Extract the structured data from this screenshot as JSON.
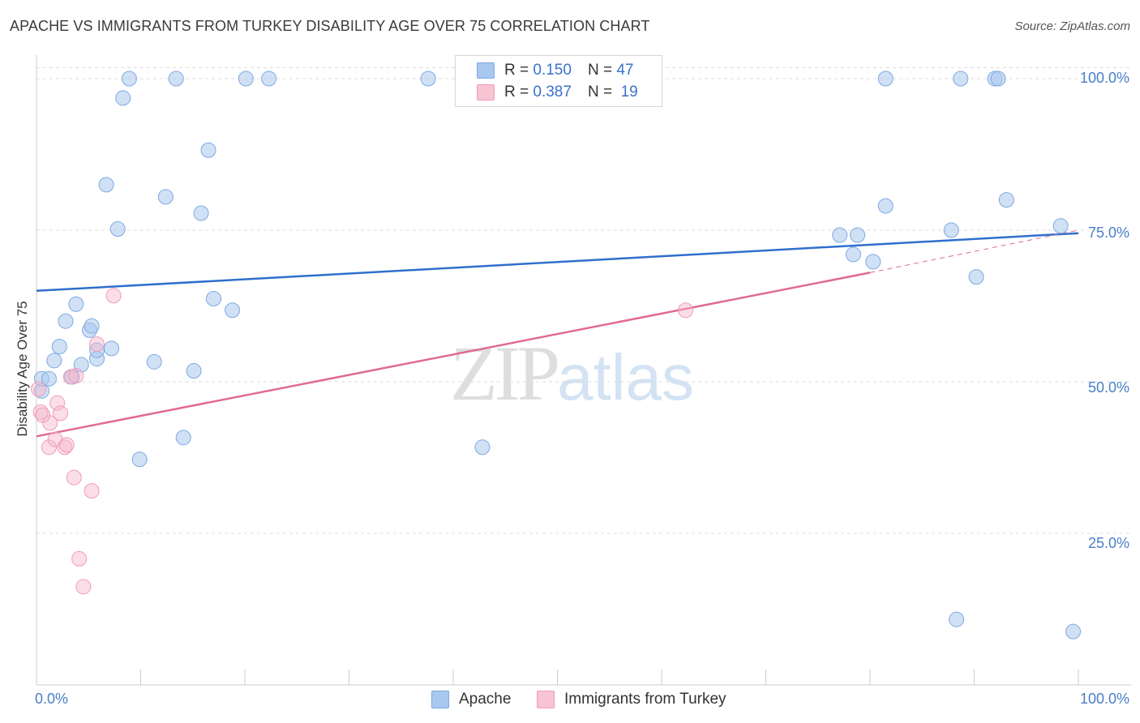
{
  "title": "APACHE VS IMMIGRANTS FROM TURKEY DISABILITY AGE OVER 75 CORRELATION CHART",
  "source": "Source: ZipAtlas.com",
  "watermark": {
    "part1": "ZIP",
    "part2": "atlas"
  },
  "legend": {
    "r_label": "R =",
    "n_label": "N =",
    "rows": [
      {
        "r": "0.150",
        "n": "47"
      },
      {
        "r": "0.387",
        "n": "19"
      }
    ]
  },
  "chart_data": {
    "type": "scatter",
    "title": "APACHE VS IMMIGRANTS FROM TURKEY DISABILITY AGE OVER 75 CORRELATION CHART",
    "xlabel": "",
    "ylabel": "Disability Age Over 75",
    "xlim": [
      0,
      100
    ],
    "ylim": [
      0,
      102
    ],
    "x_tick_labels": [
      "0.0%",
      "100.0%"
    ],
    "y_tick_labels": [
      "100.0%",
      "75.0%",
      "50.0%",
      "25.0%"
    ],
    "y_tick_values": [
      100,
      75,
      50,
      25
    ],
    "grid": true,
    "colors": {
      "apache": "#a9c8ef",
      "apache_line": "#2f6fcc",
      "turkey": "#f7b6c9",
      "turkey_line": "#e06a93"
    },
    "series": [
      {
        "name": "Apache",
        "points": [
          [
            0.5,
            48.5
          ],
          [
            0.5,
            50.5
          ],
          [
            1.2,
            50.5
          ],
          [
            1.7,
            53.5
          ],
          [
            2.2,
            55.8
          ],
          [
            2.8,
            60
          ],
          [
            3.8,
            62.8
          ],
          [
            3.4,
            50.8
          ],
          [
            4.3,
            52.8
          ],
          [
            5.1,
            58.5
          ],
          [
            5.3,
            59.2
          ],
          [
            5.8,
            53.8
          ],
          [
            5.8,
            55.2
          ],
          [
            7.2,
            55.5
          ],
          [
            6.7,
            82.5
          ],
          [
            7.8,
            75.2
          ],
          [
            8.3,
            96.8
          ],
          [
            8.9,
            100
          ],
          [
            9.9,
            37.2
          ],
          [
            11.3,
            53.3
          ],
          [
            12.4,
            80.5
          ],
          [
            13.4,
            100
          ],
          [
            14.1,
            40.8
          ],
          [
            15.1,
            51.8
          ],
          [
            15.8,
            77.8
          ],
          [
            16.5,
            88.2
          ],
          [
            17.0,
            63.7
          ],
          [
            18.8,
            61.8
          ],
          [
            20.1,
            100
          ],
          [
            22.3,
            100
          ],
          [
            37.6,
            100
          ],
          [
            42.8,
            39.2
          ],
          [
            77.1,
            74.2
          ],
          [
            78.4,
            71
          ],
          [
            78.8,
            74.2
          ],
          [
            80.3,
            69.8
          ],
          [
            81.5,
            100
          ],
          [
            81.5,
            79
          ],
          [
            87.8,
            75
          ],
          [
            88.7,
            100
          ],
          [
            88.3,
            10.8
          ],
          [
            90.2,
            67.3
          ],
          [
            92.0,
            100
          ],
          [
            92.3,
            100
          ],
          [
            93.1,
            80
          ],
          [
            98.3,
            75.7
          ],
          [
            99.5,
            8.8
          ]
        ]
      },
      {
        "name": "Immigrants from Turkey",
        "points": [
          [
            0.2,
            48.8
          ],
          [
            0.4,
            45
          ],
          [
            0.6,
            44.5
          ],
          [
            1.3,
            43.2
          ],
          [
            1.2,
            39.2
          ],
          [
            1.8,
            40.5
          ],
          [
            2.0,
            46.5
          ],
          [
            2.3,
            44.8
          ],
          [
            2.7,
            39.2
          ],
          [
            2.9,
            39.6
          ],
          [
            3.3,
            50.8
          ],
          [
            3.6,
            34.2
          ],
          [
            3.8,
            51
          ],
          [
            4.1,
            20.8
          ],
          [
            4.5,
            16.2
          ],
          [
            5.3,
            32
          ],
          [
            5.8,
            56.2
          ],
          [
            7.4,
            64.2
          ],
          [
            62.3,
            61.8
          ]
        ]
      }
    ],
    "trendlines": [
      {
        "series": "Apache",
        "x0": 0,
        "y0": 65,
        "x1": 100,
        "y1": 74.5,
        "style": "solid"
      },
      {
        "series": "Immigrants from Turkey",
        "x0": 0,
        "y0": 41,
        "x1": 80,
        "y1": 68,
        "style": "solid"
      },
      {
        "series": "Immigrants from Turkey",
        "x0": 80,
        "y0": 68,
        "x1": 100,
        "y1": 75,
        "style": "dashed"
      }
    ]
  },
  "bottom_legend": [
    "Apache",
    "Immigrants from Turkey"
  ]
}
